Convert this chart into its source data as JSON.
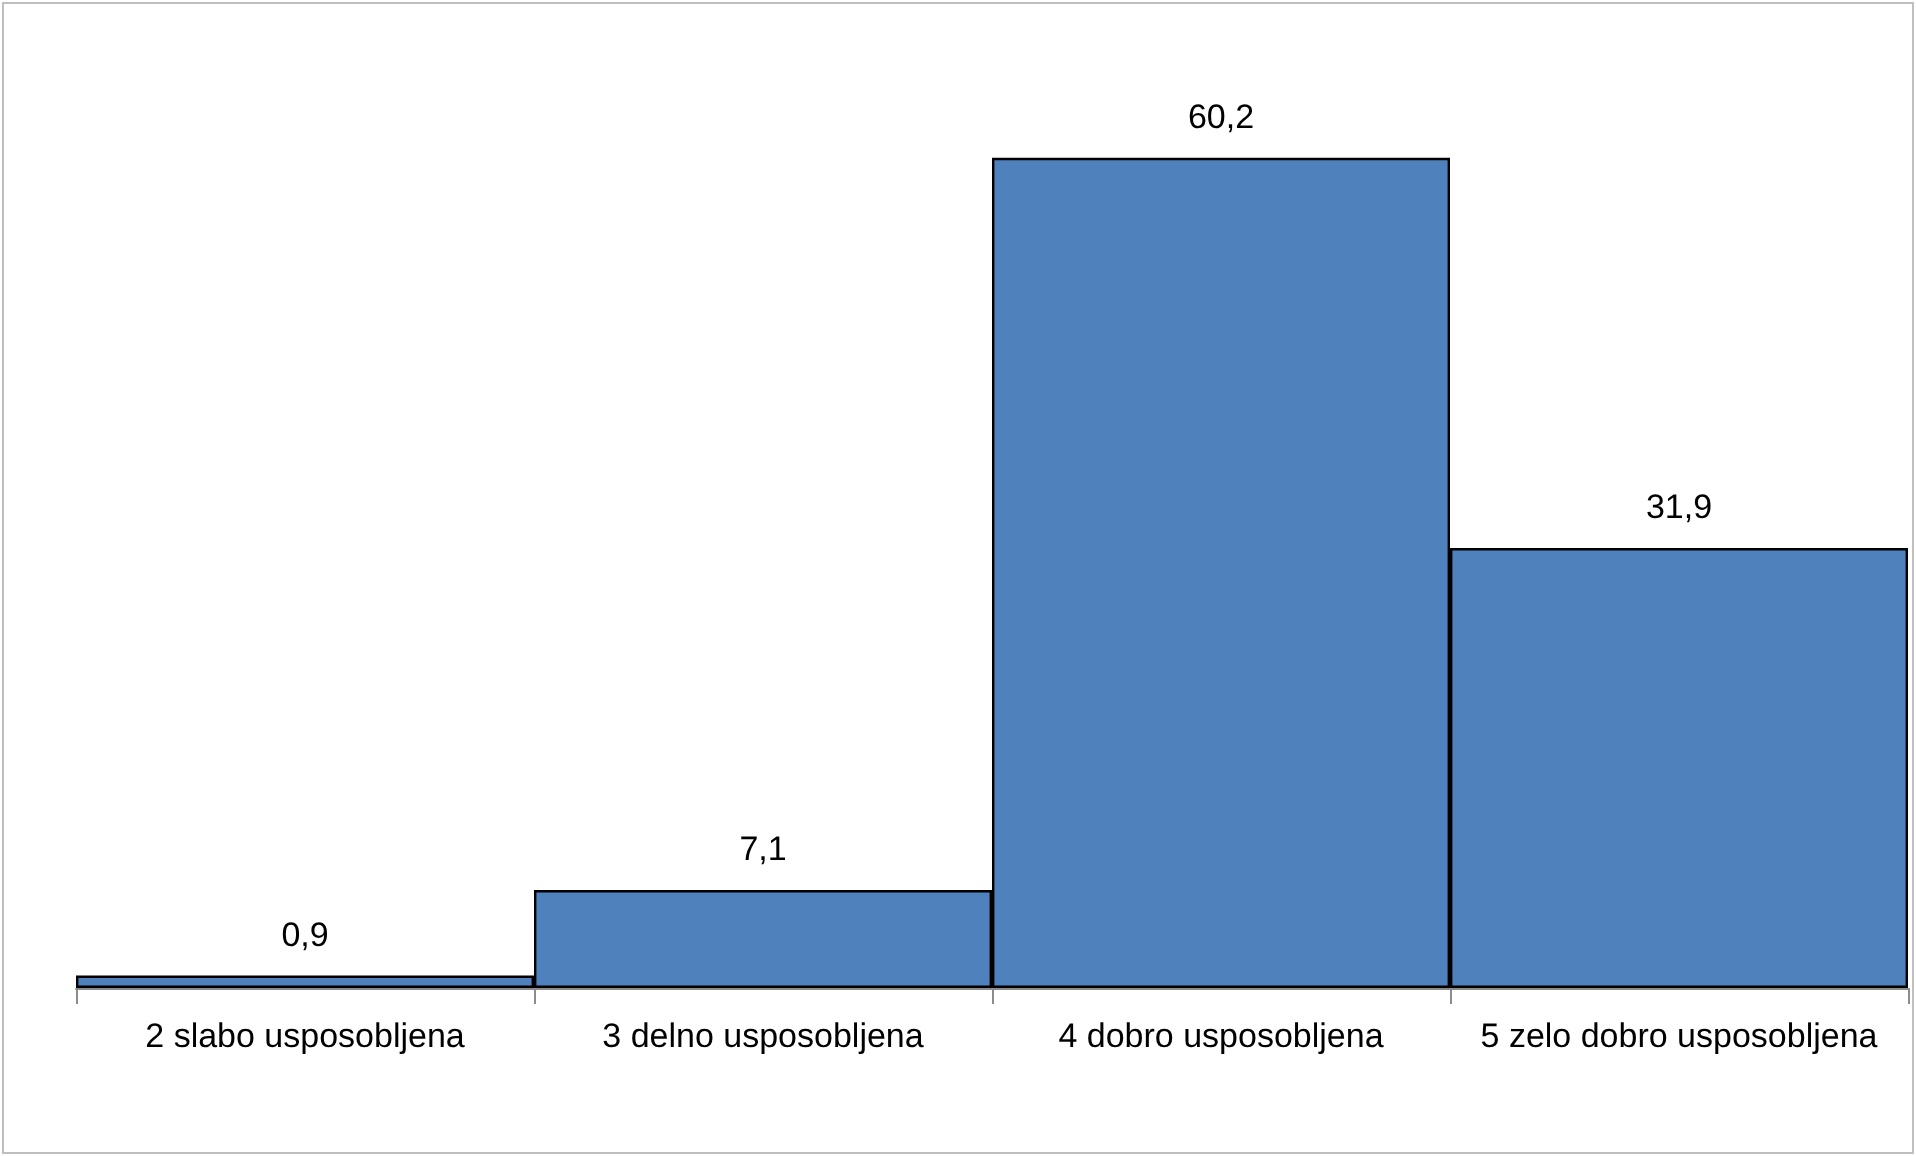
{
  "chart_data": {
    "type": "bar",
    "categories": [
      "2 slabo usposobljena",
      "3 delno usposobljena",
      "4 dobro usposobljena",
      "5 zelo dobro usposobljena"
    ],
    "values": [
      0.9,
      7.1,
      60.2,
      31.9
    ],
    "value_labels": [
      "0,9",
      "7,1",
      "60,2",
      "31,9"
    ],
    "color": "#4f81bd",
    "grid": false
  }
}
